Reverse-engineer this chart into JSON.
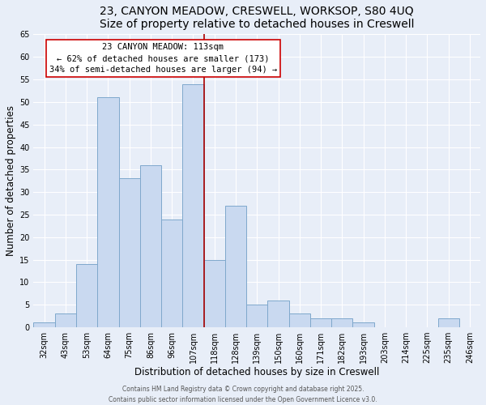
{
  "title": "23, CANYON MEADOW, CRESWELL, WORKSOP, S80 4UQ",
  "subtitle": "Size of property relative to detached houses in Creswell",
  "xlabel": "Distribution of detached houses by size in Creswell",
  "ylabel": "Number of detached properties",
  "bar_labels": [
    "32sqm",
    "43sqm",
    "53sqm",
    "64sqm",
    "75sqm",
    "86sqm",
    "96sqm",
    "107sqm",
    "118sqm",
    "128sqm",
    "139sqm",
    "150sqm",
    "160sqm",
    "171sqm",
    "182sqm",
    "193sqm",
    "203sqm",
    "214sqm",
    "225sqm",
    "235sqm",
    "246sqm"
  ],
  "bar_values": [
    1,
    3,
    14,
    51,
    33,
    36,
    24,
    54,
    15,
    27,
    5,
    6,
    3,
    2,
    2,
    1,
    0,
    0,
    0,
    2,
    0
  ],
  "bar_color": "#c9d9f0",
  "bar_edge_color": "#7fa8cc",
  "vline_x_index": 8,
  "vline_color": "#aa0000",
  "annotation_title": "23 CANYON MEADOW: 113sqm",
  "annotation_line1": "← 62% of detached houses are smaller (173)",
  "annotation_line2": "34% of semi-detached houses are larger (94) →",
  "ylim": [
    0,
    65
  ],
  "yticks": [
    0,
    5,
    10,
    15,
    20,
    25,
    30,
    35,
    40,
    45,
    50,
    55,
    60,
    65
  ],
  "footer1": "Contains HM Land Registry data © Crown copyright and database right 2025.",
  "footer2": "Contains public sector information licensed under the Open Government Licence v3.0.",
  "background_color": "#e8eef8",
  "plot_bg_color": "#e8eef8",
  "grid_color": "#ffffff",
  "title_fontsize": 10,
  "axis_label_fontsize": 8.5,
  "tick_fontsize": 7,
  "annotation_fontsize": 7.5,
  "footer_fontsize": 5.5
}
